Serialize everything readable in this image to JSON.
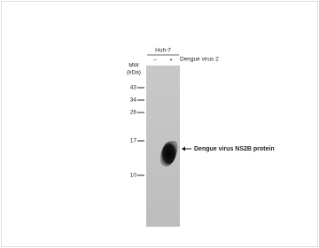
{
  "blot": {
    "cell_line": "Huh-7",
    "lanes": [
      "–",
      "+"
    ],
    "treatment": "Dengue virus 2",
    "mw_label": "MW",
    "mw_unit": "(kDa)",
    "markers": [
      43,
      34,
      26,
      17,
      10
    ],
    "band_label": "Dengue virus NS2B protein"
  }
}
